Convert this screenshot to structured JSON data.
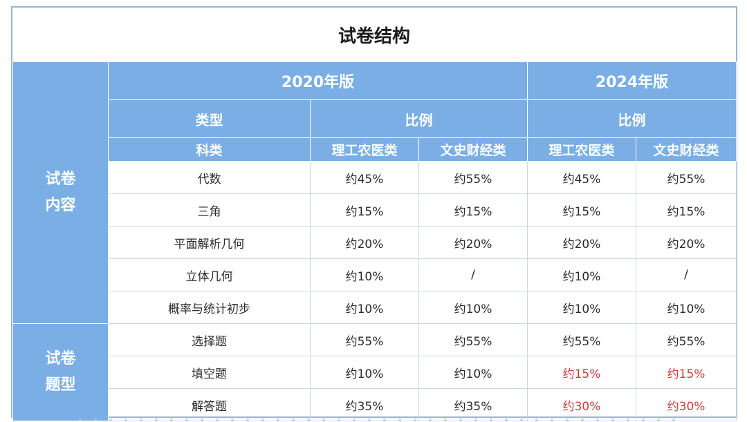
{
  "title": "试卷结构",
  "header": {
    "edition_2020": "2020年版",
    "edition_2024": "2024年版",
    "type_label": "类型",
    "ratio_label_2020": "比例",
    "ratio_label_2024": "比例",
    "category_label": "科类",
    "science_2020": "理工农医类",
    "arts_2020": "文史财经类",
    "science_2024": "理工农医类",
    "arts_2024": "文史财经类"
  },
  "sections": {
    "content": {
      "line1": "试卷",
      "line2": "内容"
    },
    "question_types": {
      "line1": "试卷",
      "line2": "题型"
    }
  },
  "rows": [
    {
      "name": "代数",
      "s2020": "约45%",
      "a2020": "约55%",
      "s2024": "约45%",
      "a2024": "约55%"
    },
    {
      "name": "三角",
      "s2020": "约15%",
      "a2020": "约15%",
      "s2024": "约15%",
      "a2024": "约15%"
    },
    {
      "name": "平面解析几何",
      "s2020": "约20%",
      "a2020": "约20%",
      "s2024": "约20%",
      "a2024": "约20%"
    },
    {
      "name": "立体几何",
      "s2020": "约10%",
      "a2020": "/",
      "s2024": "约10%",
      "a2024": "/"
    },
    {
      "name": "概率与统计初步",
      "s2020": "约10%",
      "a2020": "约10%",
      "s2024": "约10%",
      "a2024": "约10%"
    },
    {
      "name": "选择题",
      "s2020": "约55%",
      "a2020": "约55%",
      "s2024": "约55%",
      "a2024": "约55%"
    },
    {
      "name": "填空题",
      "s2020": "约10%",
      "a2020": "约10%",
      "s2024": "约15%",
      "a2024": "约15%"
    },
    {
      "name": "解答题",
      "s2020": "约35%",
      "a2020": "约35%",
      "s2024": "约30%",
      "a2024": "约30%"
    }
  ],
  "colors": {
    "header_blue": "#7aaee5",
    "changed_red": "#d03a3a"
  }
}
